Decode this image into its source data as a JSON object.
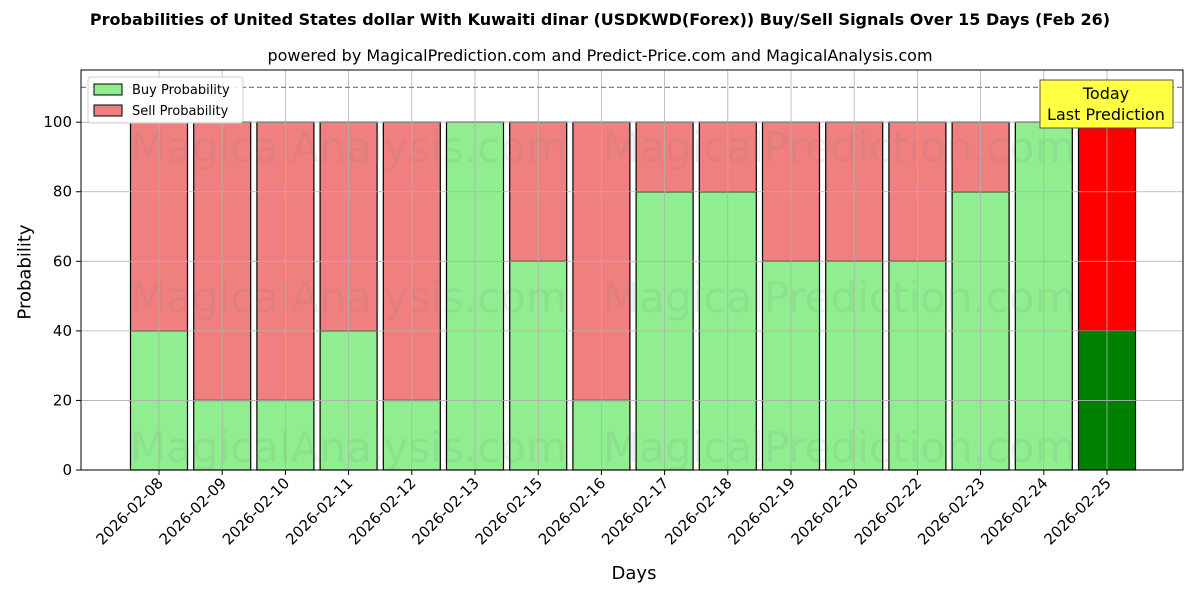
{
  "title": "Probabilities of United States dollar With Kuwaiti dinar (USDKWD(Forex)) Buy/Sell Signals Over 15 Days (Feb 26)",
  "subtitle": "powered by MagicalPrediction.com and Predict-Price.com and MagicalAnalysis.com",
  "watermarks": [
    "MagicalAnalysis.com",
    "MagicalPrediction.com"
  ],
  "annotation": {
    "line1": "Today",
    "line2": "Last Prediction",
    "bg": "#ffff44"
  },
  "colors": {
    "buy": "#90ee90",
    "sell": "#f08080",
    "today_buy": "#008000",
    "today_sell": "#ff0000"
  },
  "chart_data": {
    "type": "bar",
    "stacked": true,
    "title": "Probabilities of United States dollar With Kuwaiti dinar (USDKWD(Forex)) Buy/Sell Signals Over 15 Days (Feb 26)",
    "subtitle": "powered by MagicalPrediction.com and Predict-Price.com and MagicalAnalysis.com",
    "xlabel": "Days",
    "ylabel": "Probability",
    "ylim": [
      0,
      115
    ],
    "yticks": [
      0,
      20,
      40,
      60,
      80,
      100
    ],
    "grid": true,
    "reference_line": {
      "y": 110,
      "style": "dashed"
    },
    "legend": {
      "position": "upper left",
      "entries": [
        "Buy Probability",
        "Sell Probability"
      ]
    },
    "categories": [
      "2026-02-08",
      "2026-02-09",
      "2026-02-10",
      "2026-02-11",
      "2026-02-12",
      "2026-02-13",
      "2026-02-15",
      "2026-02-16",
      "2026-02-17",
      "2026-02-18",
      "2026-02-19",
      "2026-02-20",
      "2026-02-22",
      "2026-02-23",
      "2026-02-24",
      "2026-02-25"
    ],
    "series": [
      {
        "name": "Buy Probability",
        "values": [
          40,
          20,
          20,
          40,
          20,
          100,
          60,
          20,
          80,
          80,
          60,
          60,
          60,
          80,
          100,
          40
        ]
      },
      {
        "name": "Sell Probability",
        "values": [
          60,
          80,
          80,
          60,
          80,
          0,
          40,
          80,
          20,
          20,
          40,
          40,
          40,
          20,
          0,
          60
        ]
      }
    ],
    "highlight": {
      "category": "2026-02-25",
      "label": "Today\nLast Prediction"
    }
  }
}
